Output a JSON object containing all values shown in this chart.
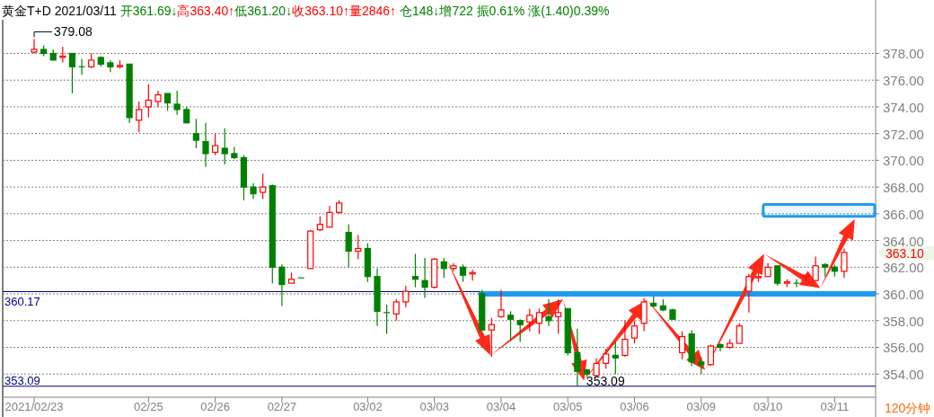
{
  "chart_data": {
    "type": "candlestick",
    "title": "黄金T+D 2021/03/11",
    "subtitle": "开361.69↓高363.40↑低361.20↓收363.10↑量2846↑ 仓148↓增722 振0.61% 涨(1.40)0.39%",
    "categories": [
      "2021/02/23",
      null,
      null,
      null,
      null,
      null,
      null,
      null,
      null,
      null,
      null,
      null,
      "02/25",
      null,
      null,
      null,
      null,
      null,
      null,
      "02/26",
      null,
      null,
      null,
      null,
      null,
      null,
      "02/27",
      null,
      null,
      null,
      null,
      null,
      null,
      null,
      null,
      "03/02",
      null,
      null,
      null,
      null,
      null,
      null,
      "03/03",
      null,
      null,
      null,
      null,
      null,
      null,
      "03/04",
      null,
      null,
      null,
      null,
      null,
      null,
      "03/05",
      null,
      null,
      null,
      null,
      null,
      null,
      "03/06",
      null,
      null,
      null,
      null,
      null,
      null,
      "03/09",
      null,
      null,
      null,
      null,
      null,
      null,
      "03/10",
      null,
      null,
      null,
      null,
      null,
      null,
      "03/11",
      null
    ],
    "ohlc": [
      [
        378.1,
        379.08,
        378.0,
        378.3
      ],
      [
        378.3,
        378.6,
        377.8,
        378.0
      ],
      [
        378.0,
        378.3,
        377.5,
        377.5
      ],
      [
        377.7,
        378.5,
        377.3,
        377.8
      ],
      [
        378.0,
        378.0,
        375.0,
        377.0
      ],
      [
        377.0,
        377.6,
        376.4,
        377.0
      ],
      [
        377.0,
        378.0,
        376.9,
        377.5
      ],
      [
        377.7,
        377.8,
        377.0,
        377.2
      ],
      [
        377.3,
        377.5,
        376.6,
        377.0
      ],
      [
        377.0,
        377.5,
        376.9,
        377.1
      ],
      [
        377.2,
        377.2,
        372.8,
        373.2
      ],
      [
        373.0,
        374.4,
        372.1,
        373.8
      ],
      [
        374.0,
        375.7,
        373.2,
        374.5
      ],
      [
        374.4,
        375.2,
        374.0,
        374.9
      ],
      [
        375.0,
        375.0,
        373.7,
        374.3
      ],
      [
        374.2,
        375.2,
        373.4,
        373.8
      ],
      [
        373.8,
        374.0,
        372.8,
        372.8
      ],
      [
        372.0,
        373.1,
        370.9,
        371.5
      ],
      [
        371.4,
        372.8,
        369.5,
        370.5
      ],
      [
        370.6,
        372.0,
        370.4,
        371.1
      ],
      [
        370.9,
        372.4,
        369.7,
        370.5
      ],
      [
        370.5,
        371.0,
        370.1,
        370.2
      ],
      [
        370.2,
        370.4,
        367.0,
        368.0
      ],
      [
        368.0,
        368.3,
        367.1,
        367.5
      ],
      [
        367.6,
        369.0,
        367.1,
        368.0
      ],
      [
        368.1,
        368.2,
        360.8,
        362.0
      ],
      [
        362.0,
        362.2,
        359.1,
        360.7
      ],
      [
        360.8,
        361.6,
        360.8,
        361.1
      ],
      [
        361.2,
        361.2,
        361.2,
        361.2
      ],
      [
        361.9,
        364.8,
        361.9,
        364.7
      ],
      [
        364.8,
        365.8,
        364.7,
        365.2
      ],
      [
        365.0,
        366.6,
        365.0,
        366.1
      ],
      [
        366.1,
        367.0,
        366.0,
        366.8
      ],
      [
        364.6,
        365.2,
        362.0,
        363.2
      ],
      [
        363.2,
        364.4,
        362.6,
        363.4
      ],
      [
        363.4,
        363.8,
        360.9,
        361.3
      ],
      [
        361.3,
        361.9,
        357.6,
        358.7
      ],
      [
        358.6,
        359.2,
        357.0,
        358.6
      ],
      [
        358.5,
        359.6,
        358.0,
        359.4
      ],
      [
        359.4,
        360.6,
        359.0,
        360.2
      ],
      [
        361.3,
        363.0,
        360.5,
        361.1
      ],
      [
        361.0,
        362.7,
        359.7,
        360.5
      ],
      [
        360.5,
        362.7,
        360.4,
        362.6
      ],
      [
        362.4,
        362.7,
        361.2,
        361.9
      ],
      [
        361.9,
        362.3,
        361.7,
        362.1
      ],
      [
        362.0,
        362.2,
        360.9,
        361.4
      ],
      [
        361.5,
        361.8,
        361.0,
        361.6
      ],
      [
        360.0,
        360.3,
        357.3,
        357.3
      ],
      [
        357.3,
        358.2,
        355.3,
        357.7
      ],
      [
        358.3,
        360.3,
        358.2,
        358.8
      ],
      [
        358.4,
        358.7,
        356.6,
        358.1
      ],
      [
        358.0,
        358.1,
        356.4,
        357.7
      ],
      [
        357.9,
        358.9,
        357.2,
        358.4
      ],
      [
        357.8,
        358.9,
        357.0,
        358.6
      ],
      [
        358.3,
        359.6,
        357.6,
        358.0
      ],
      [
        358.3,
        359.6,
        357.0,
        358.6
      ],
      [
        358.9,
        358.9,
        355.4,
        355.6
      ],
      [
        355.6,
        357.4,
        353.09,
        354.2
      ],
      [
        354.3,
        354.4,
        353.8,
        354.0
      ],
      [
        353.9,
        355.2,
        353.8,
        354.8
      ],
      [
        354.8,
        355.9,
        354.4,
        355.5
      ],
      [
        355.4,
        356.4,
        354.0,
        355.2
      ],
      [
        355.4,
        358.0,
        355.3,
        356.6
      ],
      [
        356.7,
        358.0,
        356.3,
        357.6
      ],
      [
        357.8,
        359.7,
        357.2,
        359.4
      ],
      [
        359.3,
        359.8,
        359.0,
        359.1
      ],
      [
        359.1,
        359.6,
        358.7,
        358.8
      ],
      [
        358.8,
        358.9,
        358.1,
        358.1
      ],
      [
        355.6,
        357.2,
        355.1,
        356.8
      ],
      [
        357.0,
        357.3,
        354.6,
        354.9
      ],
      [
        354.9,
        355.3,
        354.0,
        354.7
      ],
      [
        354.7,
        356.2,
        354.6,
        356.1
      ],
      [
        356.2,
        356.3,
        355.7,
        356.0
      ],
      [
        356.0,
        356.6,
        355.9,
        356.3
      ],
      [
        356.3,
        357.8,
        356.3,
        357.6
      ],
      [
        360.2,
        361.5,
        358.6,
        361.3
      ],
      [
        361.2,
        361.6,
        360.9,
        361.3
      ],
      [
        361.3,
        362.3,
        361.3,
        362.0
      ],
      [
        362.1,
        362.1,
        360.6,
        360.8
      ],
      [
        360.8,
        361.1,
        360.5,
        360.9
      ],
      [
        360.8,
        361.1,
        360.5,
        360.8
      ],
      [
        361.3,
        361.5,
        361.0,
        361.4
      ],
      [
        361.0,
        362.8,
        361.0,
        362.1
      ],
      [
        362.2,
        362.3,
        361.3,
        362.0
      ],
      [
        362.0,
        362.2,
        361.3,
        361.7
      ],
      [
        361.69,
        363.4,
        361.2,
        363.1
      ]
    ],
    "ylim": [
      352.4,
      382.0
    ],
    "yticks": [
      {
        "value": 354,
        "label": "354.00"
      },
      {
        "value": 356,
        "label": "356.00"
      },
      {
        "value": 358,
        "label": "358.00"
      },
      {
        "value": 360,
        "label": "360.00"
      },
      {
        "value": 362,
        "label": "362.00"
      },
      {
        "value": 364,
        "label": "364.00"
      },
      {
        "value": 366,
        "label": "366.00"
      },
      {
        "value": 368,
        "label": "368.00"
      },
      {
        "value": 370,
        "label": "370.00"
      },
      {
        "value": 372,
        "label": "372.00"
      },
      {
        "value": 374,
        "label": "374.00"
      },
      {
        "value": 376,
        "label": "376.00"
      },
      {
        "value": 378,
        "label": "378.00"
      }
    ],
    "grid": "y",
    "ref_lines": [
      {
        "axis": "y",
        "value": 360.17,
        "label": "360.17",
        "color": "#000080"
      },
      {
        "axis": "y",
        "value": 353.09,
        "label": "353.09",
        "color": "#000080"
      },
      {
        "axis": "y",
        "value": 360,
        "color": "#1e9bf0"
      }
    ],
    "bands": [
      {
        "axis": "y",
        "from": 365.8,
        "to": 366.7,
        "color": "#1e9bf0"
      }
    ],
    "annotations": [
      {
        "text": "379.08",
        "x": "2021/02/23",
        "y": 379.08
      },
      "353.09",
      "363.10",
      "120分钟"
    ]
  }
}
